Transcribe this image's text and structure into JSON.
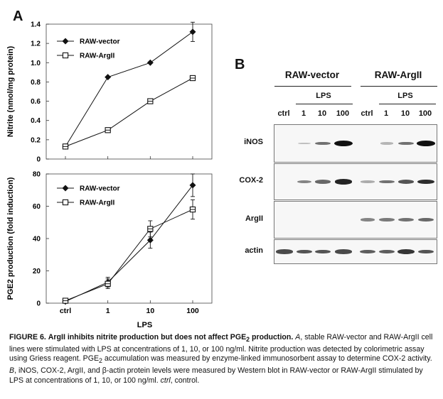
{
  "panelA": {
    "letter": "A",
    "legend_vector": "RAW-vector",
    "legend_argII": "RAW-ArgII",
    "x_ticks": [
      "ctrl",
      "1",
      "10",
      "100"
    ],
    "x_label": "LPS"
  },
  "panelB": {
    "letter": "B",
    "group1": "RAW-vector",
    "group2": "RAW-ArgII",
    "lps_label": "LPS",
    "lanes": [
      "ctrl",
      "1",
      "10",
      "100",
      "ctrl",
      "1",
      "10",
      "100"
    ],
    "rows": [
      {
        "label": "iNOS",
        "intensity": [
          0.0,
          0.05,
          0.45,
          1.0,
          0.0,
          0.1,
          0.45,
          0.95
        ]
      },
      {
        "label": "COX-2",
        "intensity": [
          0.0,
          0.35,
          0.5,
          0.85,
          0.15,
          0.45,
          0.6,
          0.8
        ]
      },
      {
        "label": "ArgII",
        "intensity": [
          0.0,
          0.0,
          0.0,
          0.0,
          0.35,
          0.4,
          0.45,
          0.5
        ]
      },
      {
        "label": "actin",
        "intensity": [
          0.65,
          0.6,
          0.6,
          0.65,
          0.55,
          0.55,
          0.75,
          0.6
        ]
      }
    ]
  },
  "chart_data": [
    {
      "type": "line",
      "categories": [
        "ctrl",
        "1",
        "10",
        "100"
      ],
      "ylabel": "Nitrite (nmol/mg protein)",
      "xlabel": "",
      "ylim": [
        0,
        1.4
      ],
      "yticks": [
        0,
        0.2,
        0.4,
        0.6,
        0.8,
        1.0,
        1.2,
        1.4
      ],
      "ytick_labels": [
        "0",
        "0.2",
        "0.4",
        "0.6",
        "0.8",
        "1.0",
        "1.2",
        "1.4"
      ],
      "series": [
        {
          "name": "RAW-vector",
          "values": [
            0.13,
            0.85,
            1.0,
            1.32
          ],
          "err": [
            0,
            0,
            0,
            0.1
          ]
        },
        {
          "name": "RAW-ArgII",
          "values": [
            0.13,
            0.3,
            0.6,
            0.84
          ],
          "err": [
            0,
            0,
            0,
            0
          ]
        }
      ]
    },
    {
      "type": "line",
      "categories": [
        "ctrl",
        "1",
        "10",
        "100"
      ],
      "ylabel": "PGE2 production (fold induction)",
      "xlabel": "LPS",
      "ylim": [
        0,
        80
      ],
      "yticks": [
        0,
        20,
        40,
        60,
        80
      ],
      "ytick_labels": [
        "0",
        "20",
        "40",
        "60",
        "80"
      ],
      "series": [
        {
          "name": "RAW-vector",
          "values": [
            1,
            13,
            39,
            73
          ],
          "err": [
            1,
            3,
            5,
            7
          ]
        },
        {
          "name": "RAW-ArgII",
          "values": [
            1.5,
            12,
            46,
            58
          ],
          "err": [
            1,
            3,
            5,
            6
          ]
        }
      ]
    }
  ],
  "caption": {
    "label": "FIGURE 6.",
    "title_pre": "ArgII inhibits nitrite production but does not affect PGE",
    "title_sub": "2",
    "title_post": " production.",
    "a_letter": "A",
    "a_text": ", stable RAW-vector and RAW-ArgII cell lines were stimulated with LPS at concentrations of 1, 10, or 100 ng/ml. Nitrite production was detected by colorimetric assay using Griess reagent. PGE",
    "a_sub": "2",
    "a_text2": " accumulation was measured by enzyme-linked immunosorbent assay to determine COX-2 activity. ",
    "b_letter": "B",
    "b_text": ", iNOS, COX-2, ArgII, and β-actin protein levels were measured by Western blot in RAW-vector or RAW-ArgII stimulated by LPS at concentrations of 1, 10, or 100 ng/ml. ",
    "ctrl_word": "ctrl",
    "ctrl_text": ", control."
  }
}
